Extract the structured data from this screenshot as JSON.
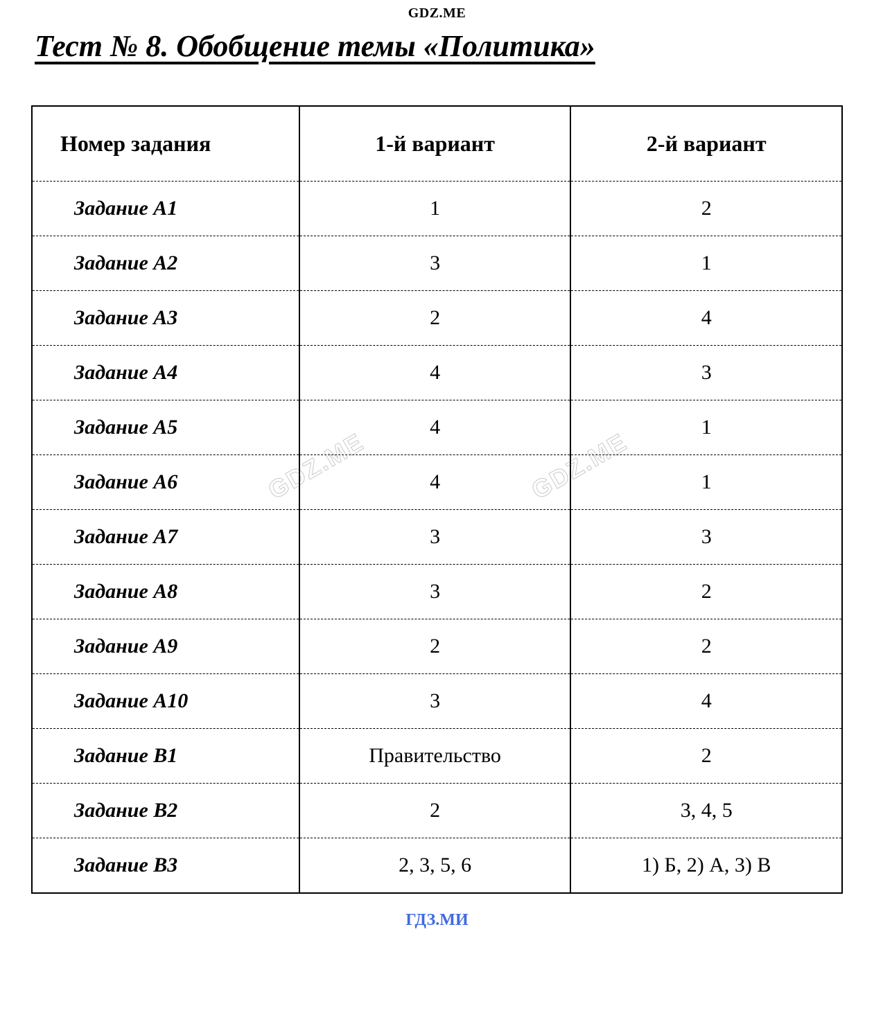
{
  "header_watermark": "GDZ.ME",
  "title": "Тест № 8. Обобщение темы «Политика»",
  "footer_watermark": "ГДЗ.МИ",
  "diagonal_watermark": "GDZ.ME",
  "table": {
    "columns": [
      "Номер задания",
      "1-й вариант",
      "2-й вариант"
    ],
    "rows": [
      [
        "Задание А1",
        "1",
        "2"
      ],
      [
        "Задание А2",
        "3",
        "1"
      ],
      [
        "Задание А3",
        "2",
        "4"
      ],
      [
        "Задание А4",
        "4",
        "3"
      ],
      [
        "Задание А5",
        "4",
        "1"
      ],
      [
        "Задание А6",
        "4",
        "1"
      ],
      [
        "Задание А7",
        "3",
        "3"
      ],
      [
        "Задание А8",
        "3",
        "2"
      ],
      [
        "Задание А9",
        "2",
        "2"
      ],
      [
        "Задание А10",
        "3",
        "4"
      ],
      [
        "Задание В1",
        "Правительство",
        "2"
      ],
      [
        "Задание В2",
        "2",
        "3, 4, 5"
      ],
      [
        "Задание В3",
        "2, 3, 5, 6",
        "1) Б, 2) А, 3) В"
      ]
    ]
  },
  "colors": {
    "text": "#000000",
    "footer": "#4169e1",
    "watermark": "rgba(150,150,150,0.35)",
    "background": "#ffffff",
    "border": "#000000"
  }
}
